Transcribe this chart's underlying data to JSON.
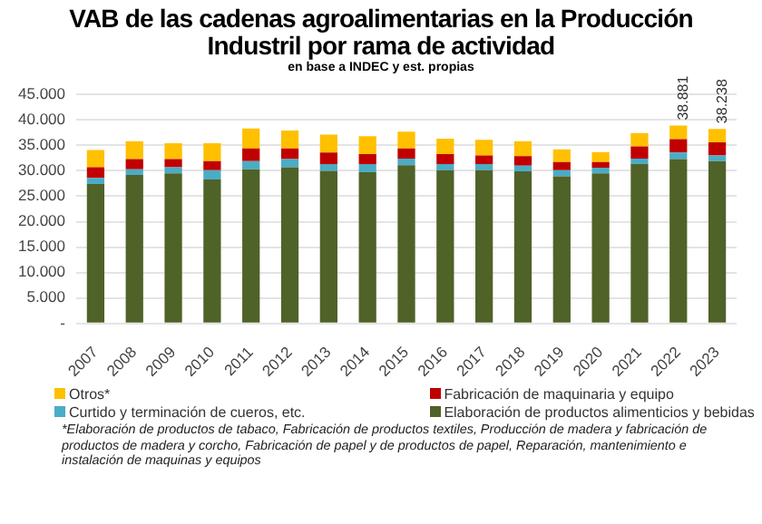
{
  "chart_data": {
    "type": "bar",
    "stacked": true,
    "title": "VAB de las cadenas agroalimentarias en la Producción Industril por rama de actividad",
    "subtitle": "en base a INDEC y est. propias",
    "categories": [
      "2007",
      "2008",
      "2009",
      "2010",
      "2011",
      "2012",
      "2013",
      "2014",
      "2015",
      "2016",
      "2017",
      "2018",
      "2019",
      "2020",
      "2021",
      "2022",
      "2023"
    ],
    "series": [
      {
        "name": "Elaboración de productos alimenticios y bebidas",
        "color": "#4f6228",
        "values": [
          27400,
          29200,
          29500,
          28300,
          30300,
          30700,
          30000,
          29700,
          31100,
          30100,
          30100,
          29900,
          28900,
          29500,
          31300,
          32300,
          31900
        ]
      },
      {
        "name": "Curtido y terminación de cueros, etc.",
        "color": "#4bacc6",
        "values": [
          1200,
          1100,
          1200,
          1800,
          1600,
          1600,
          1300,
          1600,
          1300,
          1200,
          1200,
          1100,
          1200,
          1100,
          1100,
          1300,
          1100
        ]
      },
      {
        "name": "Fabricación de maquinaria y equipo",
        "color": "#c00000",
        "values": [
          2100,
          2000,
          1600,
          1800,
          2500,
          2100,
          2300,
          2000,
          2000,
          2000,
          1700,
          1900,
          1600,
          1100,
          2400,
          2600,
          2600
        ]
      },
      {
        "name": "Otros*",
        "color": "#ffc000",
        "values": [
          3400,
          3500,
          3100,
          3500,
          3900,
          3500,
          3500,
          3500,
          3300,
          3000,
          3100,
          2900,
          2500,
          2000,
          2600,
          2681,
          2638
        ]
      }
    ],
    "totals": [
      null,
      null,
      null,
      null,
      null,
      null,
      null,
      null,
      null,
      null,
      null,
      null,
      null,
      null,
      null,
      "38.881",
      "38.238"
    ],
    "ylim": [
      0,
      45000
    ],
    "yticks": [
      {
        "value": 0,
        "label": "-"
      },
      {
        "value": 5000,
        "label": "5.000"
      },
      {
        "value": 10000,
        "label": "10.000"
      },
      {
        "value": 15000,
        "label": "15.000"
      },
      {
        "value": 20000,
        "label": "20.000"
      },
      {
        "value": 25000,
        "label": "25.000"
      },
      {
        "value": 30000,
        "label": "30.000"
      },
      {
        "value": 35000,
        "label": "35.000"
      },
      {
        "value": 40000,
        "label": "40.000"
      },
      {
        "value": 45000,
        "label": "45.000"
      }
    ],
    "grid": "y",
    "legend": "bottom",
    "annotations": [
      "*Elaboración de productos de tabaco, Fabricación de productos textiles, Producción de madera y fabricación de productos de madera y corcho, Fabricación de papel y de productos de papel, Reparación, mantenimiento e instalación de maquinas y equipos"
    ]
  }
}
